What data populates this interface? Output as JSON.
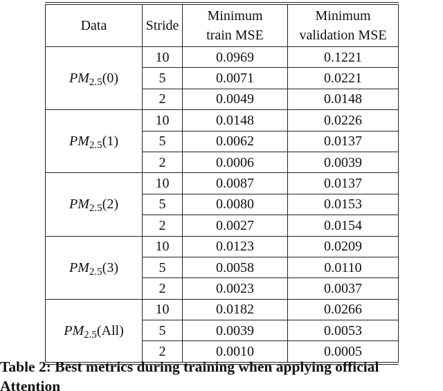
{
  "table": {
    "header": [
      "Data",
      "Stride",
      [
        "Minimum",
        "train MSE"
      ],
      [
        "Minimum",
        "validation MSE"
      ]
    ],
    "groups": [
      {
        "label": {
          "base": "PM",
          "sub": "2.5",
          "arg": "(0)"
        },
        "rows": [
          [
            "10",
            "0.0969",
            "0.1221"
          ],
          [
            "5",
            "0.0071",
            "0.0221"
          ],
          [
            "2",
            "0.0049",
            "0.0148"
          ]
        ]
      },
      {
        "label": {
          "base": "PM",
          "sub": "2.5",
          "arg": "(1)"
        },
        "rows": [
          [
            "10",
            "0.0148",
            "0.0226"
          ],
          [
            "5",
            "0.0062",
            "0.0137"
          ],
          [
            "2",
            "0.0006",
            "0.0039"
          ]
        ]
      },
      {
        "label": {
          "base": "PM",
          "sub": "2.5",
          "arg": "(2)"
        },
        "rows": [
          [
            "10",
            "0.0087",
            "0.0137"
          ],
          [
            "5",
            "0.0080",
            "0.0153"
          ],
          [
            "2",
            "0.0027",
            "0.0154"
          ]
        ]
      },
      {
        "label": {
          "base": "PM",
          "sub": "2.5",
          "arg": "(3)"
        },
        "rows": [
          [
            "10",
            "0.0123",
            "0.0209"
          ],
          [
            "5",
            "0.0058",
            "0.0110"
          ],
          [
            "2",
            "0.0023",
            "0.0037"
          ]
        ]
      },
      {
        "label": {
          "base": "PM",
          "sub": "2.5",
          "arg": "(All)"
        },
        "rows": [
          [
            "10",
            "0.0182",
            "0.0266"
          ],
          [
            "5",
            "0.0039",
            "0.0053"
          ],
          [
            "2",
            "0.0010",
            "0.0005"
          ]
        ]
      }
    ]
  },
  "caption": [
    "Table 2: Best metrics during training when applying official",
    "Attention"
  ]
}
